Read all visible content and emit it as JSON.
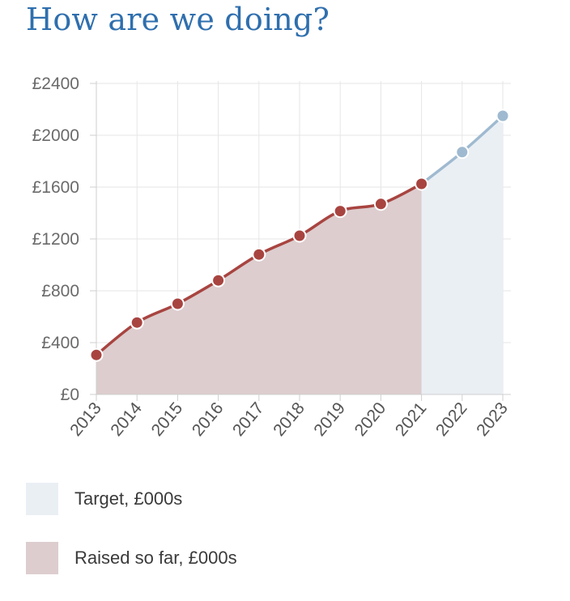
{
  "title": "How are we doing?",
  "chart_data": {
    "type": "area",
    "x": [
      "2013",
      "2014",
      "2015",
      "2016",
      "2017",
      "2018",
      "2019",
      "2020",
      "2021",
      "2022",
      "2023"
    ],
    "y_ticks": [
      "£0",
      "£400",
      "£800",
      "£1200",
      "£1600",
      "£2000",
      "£2400"
    ],
    "ylim": [
      0,
      2400
    ],
    "grid": true,
    "series": [
      {
        "name": "Raised so far, £000s",
        "x": [
          "2013",
          "2014",
          "2015",
          "2016",
          "2017",
          "2018",
          "2019",
          "2020",
          "2021"
        ],
        "values": [
          305,
          555,
          700,
          880,
          1080,
          1225,
          1415,
          1470,
          1625
        ],
        "line_color": "#a84440",
        "fill_color": "#ddcdce"
      },
      {
        "name": "Target, £000s",
        "x": [
          "2021",
          "2022",
          "2023"
        ],
        "values": [
          1625,
          1870,
          2150
        ],
        "line_color": "#9fbad0",
        "fill_color": "#eaeff4"
      }
    ]
  },
  "legend": {
    "items": [
      {
        "label": "Target, £000s",
        "color": "#eaeff4"
      },
      {
        "label": "Raised so far, £000s",
        "color": "#ddcdce"
      }
    ]
  }
}
